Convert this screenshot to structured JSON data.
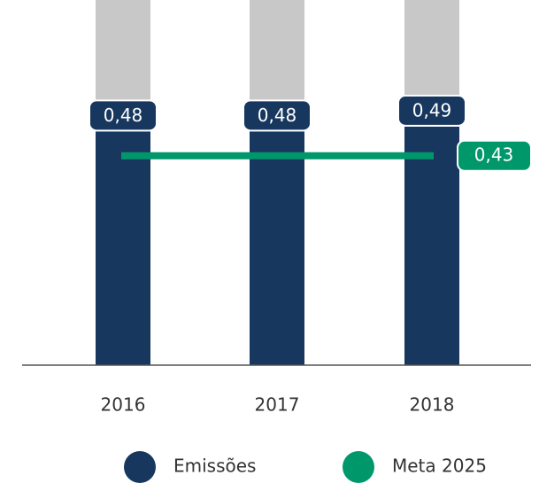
{
  "chart_data": {
    "type": "bar",
    "categories": [
      "2016",
      "2017",
      "2018"
    ],
    "series": [
      {
        "name": "Emissões",
        "color": "#17375e",
        "values": [
          0.48,
          0.48,
          0.49
        ],
        "value_labels": [
          "0,48",
          "0,48",
          "0,49"
        ]
      }
    ],
    "target": {
      "name": "Meta 2025",
      "color": "#00976b",
      "value": 0.43,
      "value_label": "0,43"
    },
    "ylim": [
      0,
      0.75
    ]
  }
}
